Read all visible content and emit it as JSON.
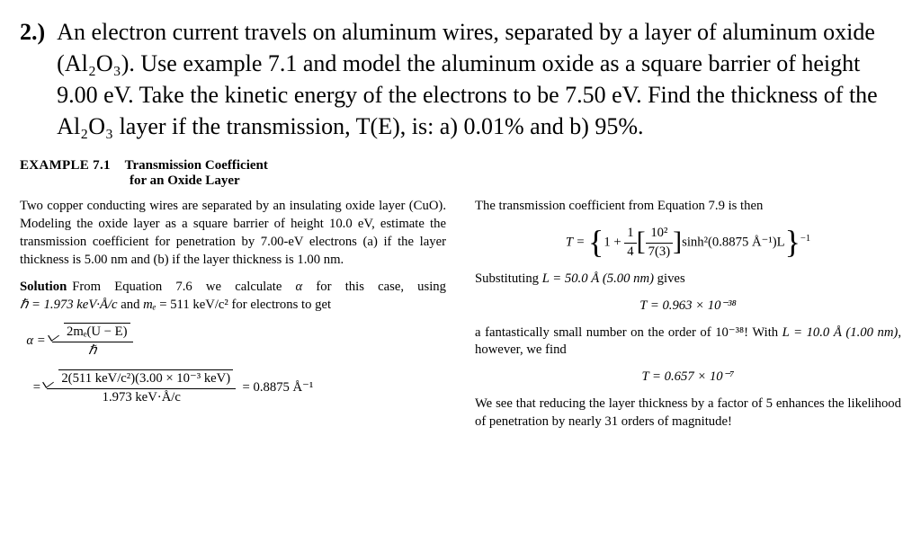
{
  "problem": {
    "number": "2.)",
    "line1_prefix": "An electron current travels on aluminum wires, separated by a layer of aluminum",
    "rest": "oxide (Al₂O₃). Use example 7.1 and model the aluminum oxide as a square barrier of height 9.00 eV.  Take the kinetic energy of the electrons to be 7.50 eV. Find the thickness of the Al₂O₃ layer if the transmission, T(E), is: a) 0.01% and b) 95%."
  },
  "example": {
    "label": "EXAMPLE 7.1",
    "title_line1": "Transmission Coefficient",
    "title_line2": "for an Oxide Layer"
  },
  "left": {
    "p1": "Two copper conducting wires are separated by an insulating oxide layer (CuO). Modeling the oxide layer as a square barrier of height 10.0 eV, estimate the transmission coefficient for penetration by 7.00-eV electrons (a) if the layer thickness is 5.00 nm and (b) if the layer thickness is 1.00 nm.",
    "solution_label": "Solution",
    "p2a": "From Equation 7.6 we calculate ",
    "alpha": "α",
    "p2b": " for this case, using ",
    "hbar_eq": "ℏ = 1.973 keV·Å/c",
    "p2c": " and ",
    "me_eq_lhs": "mₑ",
    "me_eq_rhs": " = 511 keV/c²",
    "p2d": " for electrons to get",
    "alpha_eq_lhs": "α =",
    "alpha_top": "2mₑ(U − E)",
    "alpha_bot": "ℏ",
    "alpha_num_top": "2(511 keV/c²)(3.00 × 10⁻³ keV)",
    "alpha_num_bot": "1.973 keV·Å/c",
    "alpha_result": "= 0.8875 Å⁻¹",
    "eq_sign": "="
  },
  "right": {
    "p1": "The transmission coefficient from Equation 7.9 is then",
    "T_lhs": "T =",
    "T_one_plus": "1 +",
    "T_frac_top_num": "1",
    "T_frac_top_den": "4",
    "T_inner_top": "10²",
    "T_inner_bot": "7(3)",
    "T_sinh": "sinh²(0.8875 Å⁻¹)L",
    "T_exp": "−1",
    "p2a": "Substituting ",
    "p2b": "L = 50.0 Å (5.00 nm)",
    "p2c": " gives",
    "T_val1": "T = 0.963 × 10⁻³⁸",
    "p3a": "a fantastically small number on the order of 10⁻³⁸! With ",
    "p3b": "L = 10.0 Å (1.00 nm)",
    "p3c": ", however, we find",
    "T_val2": "T = 0.657 × 10⁻⁷",
    "p4": "We see that reducing the layer thickness by a factor of 5 enhances the likelihood of penetration by nearly 31 orders of magnitude!"
  }
}
